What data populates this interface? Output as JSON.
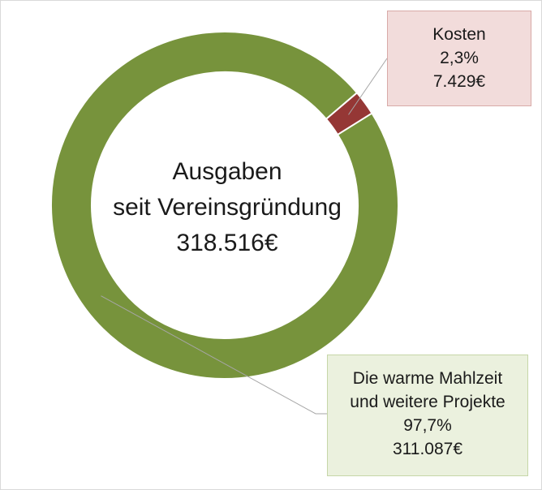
{
  "chart_data": {
    "type": "pie",
    "title": "",
    "center_label": [
      "Ausgaben",
      "seit Vereinsgründung",
      "318.516€"
    ],
    "categories": [
      "Kosten",
      "Die warme Mahlzeit und weitere Projekte"
    ],
    "values": [
      7429,
      311087
    ],
    "percentages": [
      2.3,
      97.7
    ],
    "colors": [
      "#953735",
      "#77933c"
    ],
    "labels": [
      {
        "lines": [
          "Kosten",
          "2,3%",
          "7.429€"
        ],
        "fill": "#f2dcdb"
      },
      {
        "lines": [
          "Die warme Mahlzeit",
          "und weitere Projekte",
          "97,7%",
          "311.087€"
        ],
        "fill": "#ebf1de"
      }
    ],
    "total": 318516,
    "legend": "none"
  }
}
